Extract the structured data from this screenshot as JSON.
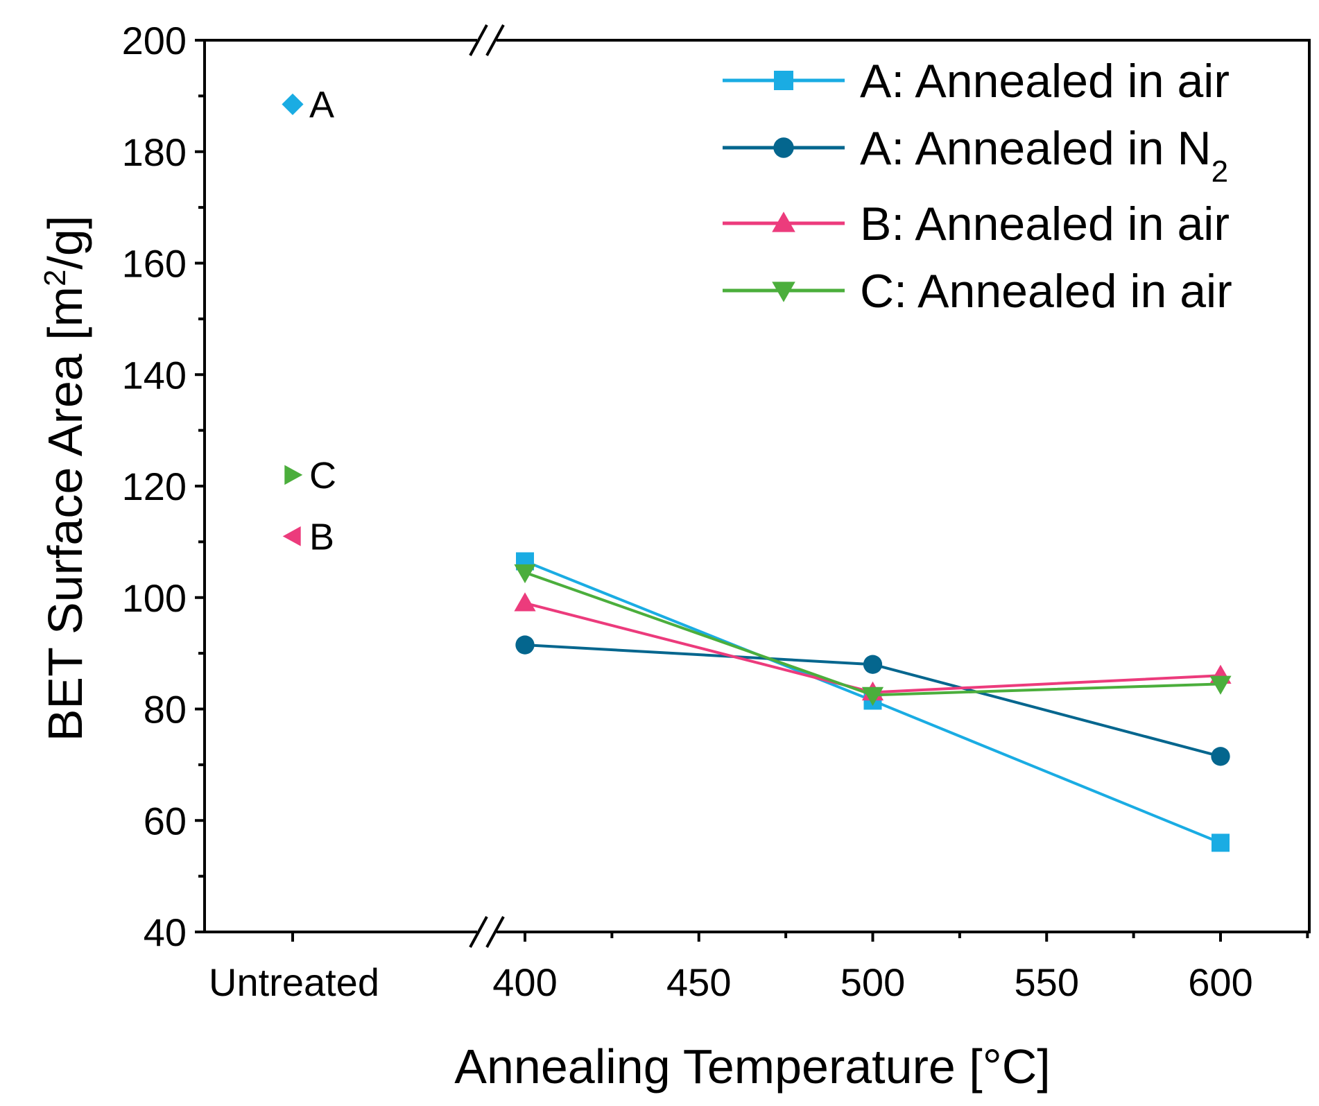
{
  "chart_data": {
    "type": "line",
    "title": "",
    "xlabel": "Annealing Temperature [°C]",
    "ylabel": {
      "text": "BET Surface Area [m",
      "superscript": "2",
      "suffix": "/g]"
    },
    "ylim": [
      40,
      200
    ],
    "yticks": [
      40,
      60,
      80,
      100,
      120,
      140,
      160,
      180,
      200
    ],
    "ytick_labels": [
      "40",
      "60",
      "80",
      "100",
      "120",
      "140",
      "160",
      "180",
      "200"
    ],
    "xlim": [
      400,
      625
    ],
    "xticks": [
      400,
      450,
      500,
      550,
      600
    ],
    "xtick_labels": [
      "400",
      "450",
      "500",
      "550",
      "600"
    ],
    "untreated_label": "Untreated",
    "axis_break": true,
    "grid": false,
    "legend_position": "top-right",
    "series": [
      {
        "name": "A: Annealed in air",
        "name_sub": "",
        "color": "#1AACE3",
        "marker": "square",
        "x": [
          400,
          500,
          600
        ],
        "y": [
          106.5,
          81.5,
          56
        ]
      },
      {
        "name": "A: Annealed in N",
        "name_sub": "2",
        "color": "#04668E",
        "marker": "circle",
        "x": [
          400,
          500,
          600
        ],
        "y": [
          91.5,
          88,
          71.5
        ]
      },
      {
        "name": "B: Annealed in air",
        "name_sub": "",
        "color": "#EC3B7C",
        "marker": "triangle-up",
        "x": [
          400,
          500,
          600
        ],
        "y": [
          99,
          83,
          86
        ]
      },
      {
        "name": "C: Annealed in air",
        "name_sub": "",
        "color": "#4BAE3C",
        "marker": "triangle-down",
        "x": [
          400,
          500,
          600
        ],
        "y": [
          104.5,
          82.5,
          84.5
        ]
      }
    ],
    "untreated_points": [
      {
        "label": "A",
        "value": 188.5,
        "marker": "diamond",
        "color": "#1AACE3"
      },
      {
        "label": "C",
        "value": 122,
        "marker": "triangle-right",
        "color": "#4BAE3C"
      },
      {
        "label": "B",
        "value": 111,
        "marker": "triangle-left",
        "color": "#EC3B7C"
      }
    ]
  }
}
